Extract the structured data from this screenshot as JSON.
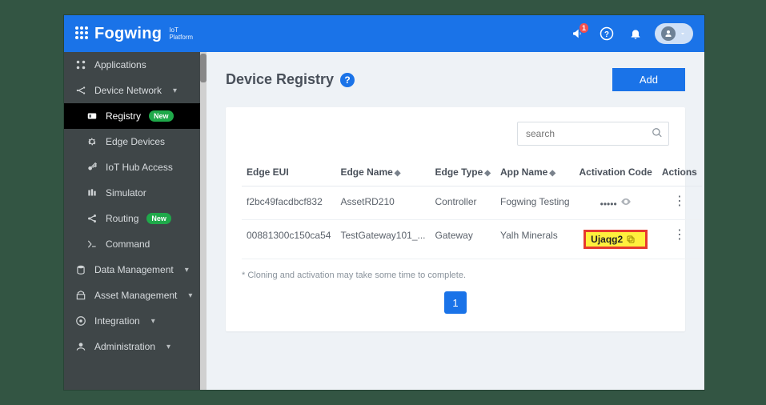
{
  "brand": {
    "name": "Fogwing",
    "subtitle1": "IoT",
    "subtitle2": "Platform"
  },
  "notif_count": "1",
  "sidebar": {
    "items": [
      {
        "label": "Applications",
        "icon": "apps"
      },
      {
        "label": "Device Network",
        "icon": "network",
        "chev": true
      },
      {
        "label": "Registry",
        "icon": "id-card",
        "active": true,
        "badge": "New"
      },
      {
        "label": "Edge Devices",
        "icon": "gear"
      },
      {
        "label": "IoT Hub Access",
        "icon": "key"
      },
      {
        "label": "Simulator",
        "icon": "simulator"
      },
      {
        "label": "Routing",
        "icon": "share",
        "badge": "New"
      },
      {
        "label": "Command",
        "icon": "terminal"
      },
      {
        "label": "Data Management",
        "icon": "data",
        "chev": true,
        "top": true
      },
      {
        "label": "Asset Management",
        "icon": "asset",
        "chev": true,
        "top": true
      },
      {
        "label": "Integration",
        "icon": "integration",
        "chev": true,
        "top": true
      },
      {
        "label": "Administration",
        "icon": "admin",
        "chev": true,
        "top": true
      }
    ]
  },
  "page": {
    "title": "Device Registry",
    "addLabel": "Add",
    "searchPlaceholder": "search",
    "columns": {
      "edgeEui": "Edge EUI",
      "edgeName": "Edge Name",
      "edgeType": "Edge Type",
      "appName": "App Name",
      "activation": "Activation Code",
      "actions": "Actions"
    },
    "rows": [
      {
        "eui": "f2bc49facdbcf832",
        "name": "AssetRD210",
        "type": "Controller",
        "app": "Fogwing Testing",
        "code": "•••••",
        "masked": true
      },
      {
        "eui": "00881300c150ca54",
        "name": "TestGateway101_...",
        "type": "Gateway",
        "app": "Yalh Minerals",
        "code": "Ujaqg2",
        "highlight": true
      }
    ],
    "note": "* Cloning and activation may take some time to complete.",
    "currentPage": "1"
  },
  "colors": {
    "accent": "#1a73e8",
    "sidebar": "#3f4648",
    "badge": "#1fa94a",
    "highlight_bg": "#ffef3d",
    "highlight_border": "#e63a2e"
  }
}
